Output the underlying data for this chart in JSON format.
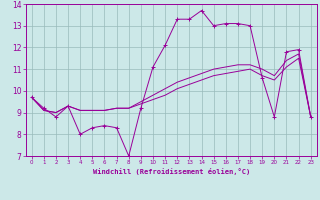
{
  "xlabel": "Windchill (Refroidissement éolien,°C)",
  "hours": [
    0,
    1,
    2,
    3,
    4,
    5,
    6,
    7,
    8,
    9,
    10,
    11,
    12,
    13,
    14,
    15,
    16,
    17,
    18,
    19,
    20,
    21,
    22,
    23
  ],
  "line1": [
    9.7,
    9.2,
    8.8,
    9.3,
    8.0,
    8.3,
    8.4,
    8.3,
    7.0,
    9.2,
    11.1,
    12.1,
    13.3,
    13.3,
    13.7,
    13.0,
    13.1,
    13.1,
    13.0,
    10.6,
    8.8,
    11.8,
    11.9,
    8.8
  ],
  "line2": [
    9.7,
    9.1,
    9.0,
    9.3,
    9.1,
    9.1,
    9.1,
    9.2,
    9.2,
    9.4,
    9.6,
    9.8,
    10.1,
    10.3,
    10.5,
    10.7,
    10.8,
    10.9,
    11.0,
    10.7,
    10.5,
    11.1,
    11.5,
    8.8
  ],
  "line3": [
    9.7,
    9.1,
    9.0,
    9.3,
    9.1,
    9.1,
    9.1,
    9.2,
    9.2,
    9.5,
    9.8,
    10.1,
    10.4,
    10.6,
    10.8,
    11.0,
    11.1,
    11.2,
    11.2,
    11.0,
    10.7,
    11.4,
    11.7,
    8.8
  ],
  "line_color": "#990099",
  "bg_color": "#cce8e8",
  "grid_color": "#99bbbb",
  "ylim": [
    7,
    14
  ],
  "yticks": [
    7,
    8,
    9,
    10,
    11,
    12,
    13,
    14
  ]
}
